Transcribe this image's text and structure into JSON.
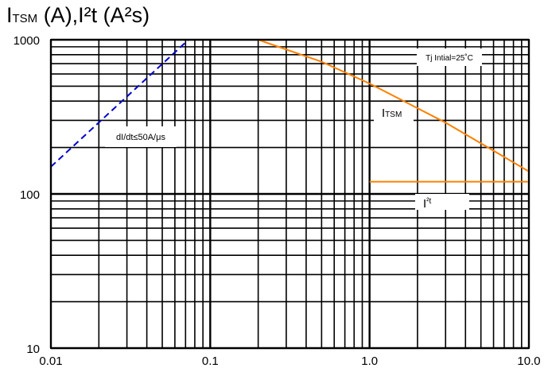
{
  "chart_data": {
    "type": "line",
    "ylabel_main": "I",
    "ylabel_sub": "TSM",
    "ylabel_rest": " (A),I²t (A²s)",
    "xscale": "log",
    "yscale": "log",
    "xlim": [
      0.01,
      10.0
    ],
    "ylim": [
      10,
      1000
    ],
    "grid": true,
    "xticks": [
      "0.01",
      "0.1",
      "1.0",
      "10.0"
    ],
    "yticks": [
      "10",
      "100",
      "1000"
    ],
    "series": [
      {
        "label_main": "I",
        "label_sub": "TSM",
        "color": "#ff8000",
        "style": "solid",
        "x": [
          0.2,
          0.5,
          1.0,
          3.0,
          10.0
        ],
        "y": [
          1000,
          720,
          520,
          290,
          140
        ]
      },
      {
        "label_main": "I",
        "label_sub": "²t",
        "color": "#ff8000",
        "style": "solid",
        "x": [
          1.0,
          10.0
        ],
        "y": [
          120,
          120
        ]
      },
      {
        "label_main": "",
        "label_sub": "",
        "color": "#0000cc",
        "style": "dashed",
        "x": [
          0.01,
          0.073
        ],
        "y": [
          150,
          1000
        ]
      }
    ],
    "annotations": [
      {
        "text": "Tj Intial=25˚C"
      },
      {
        "text": "dI/dt≤50A/μs"
      }
    ]
  }
}
